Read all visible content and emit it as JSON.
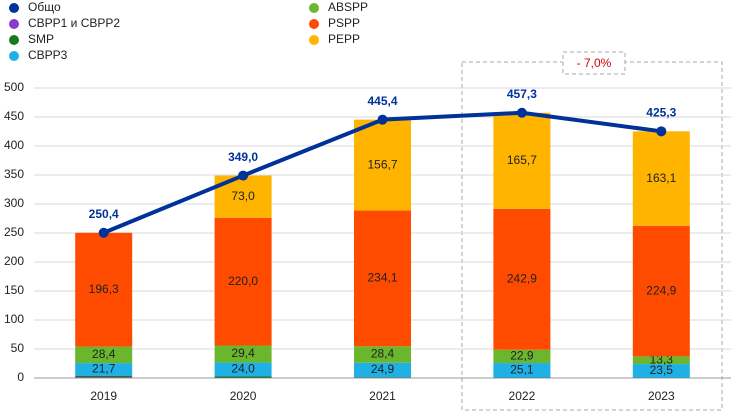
{
  "chart_data": {
    "type": "bar",
    "stacked": true,
    "categories": [
      "2019",
      "2020",
      "2021",
      "2022",
      "2023"
    ],
    "series": [
      {
        "name": "CBPP1 и CBPP2",
        "color": "#8a3ccf",
        "values": [
          1.4,
          0.6,
          0.5,
          0.3,
          0.2
        ]
      },
      {
        "name": "SMP",
        "color": "#1a7a1a",
        "values": [
          2.6,
          2.0,
          0.8,
          0.4,
          0.3
        ]
      },
      {
        "name": "CBPP3",
        "color": "#1fb1e6",
        "values": [
          21.7,
          24.0,
          24.9,
          25.1,
          23.5
        ],
        "value_labels": [
          "21,7",
          "24,0",
          "24,9",
          "25,1",
          "23,5"
        ]
      },
      {
        "name": "ABSPP",
        "color": "#6ab72e",
        "values": [
          28.4,
          29.4,
          28.4,
          22.9,
          13.3
        ],
        "value_labels": [
          "28,4",
          "29,4",
          "28,4",
          "22,9",
          "13,3"
        ]
      },
      {
        "name": "PSPP",
        "color": "#ff4b00",
        "values": [
          196.3,
          220.0,
          234.1,
          242.9,
          224.9
        ],
        "value_labels": [
          "196,3",
          "220,0",
          "234,1",
          "242,9",
          "224,9"
        ]
      },
      {
        "name": "PEPP",
        "color": "#ffb400",
        "values": [
          null,
          73.0,
          156.7,
          165.7,
          163.1
        ],
        "value_labels": [
          null,
          "73,0",
          "156,7",
          "165,7",
          "163,1"
        ]
      }
    ],
    "line": {
      "name": "Общо",
      "color": "#003299",
      "values": [
        250.4,
        349.0,
        445.4,
        457.3,
        425.3
      ],
      "value_labels": [
        "250,4",
        "349,0",
        "445,4",
        "457,3",
        "425,3"
      ]
    },
    "annotation": "- 7,0%",
    "ylim": [
      0,
      500
    ],
    "yticks": [
      0,
      50,
      100,
      150,
      200,
      250,
      300,
      350,
      400,
      450,
      500
    ],
    "grid": true
  }
}
